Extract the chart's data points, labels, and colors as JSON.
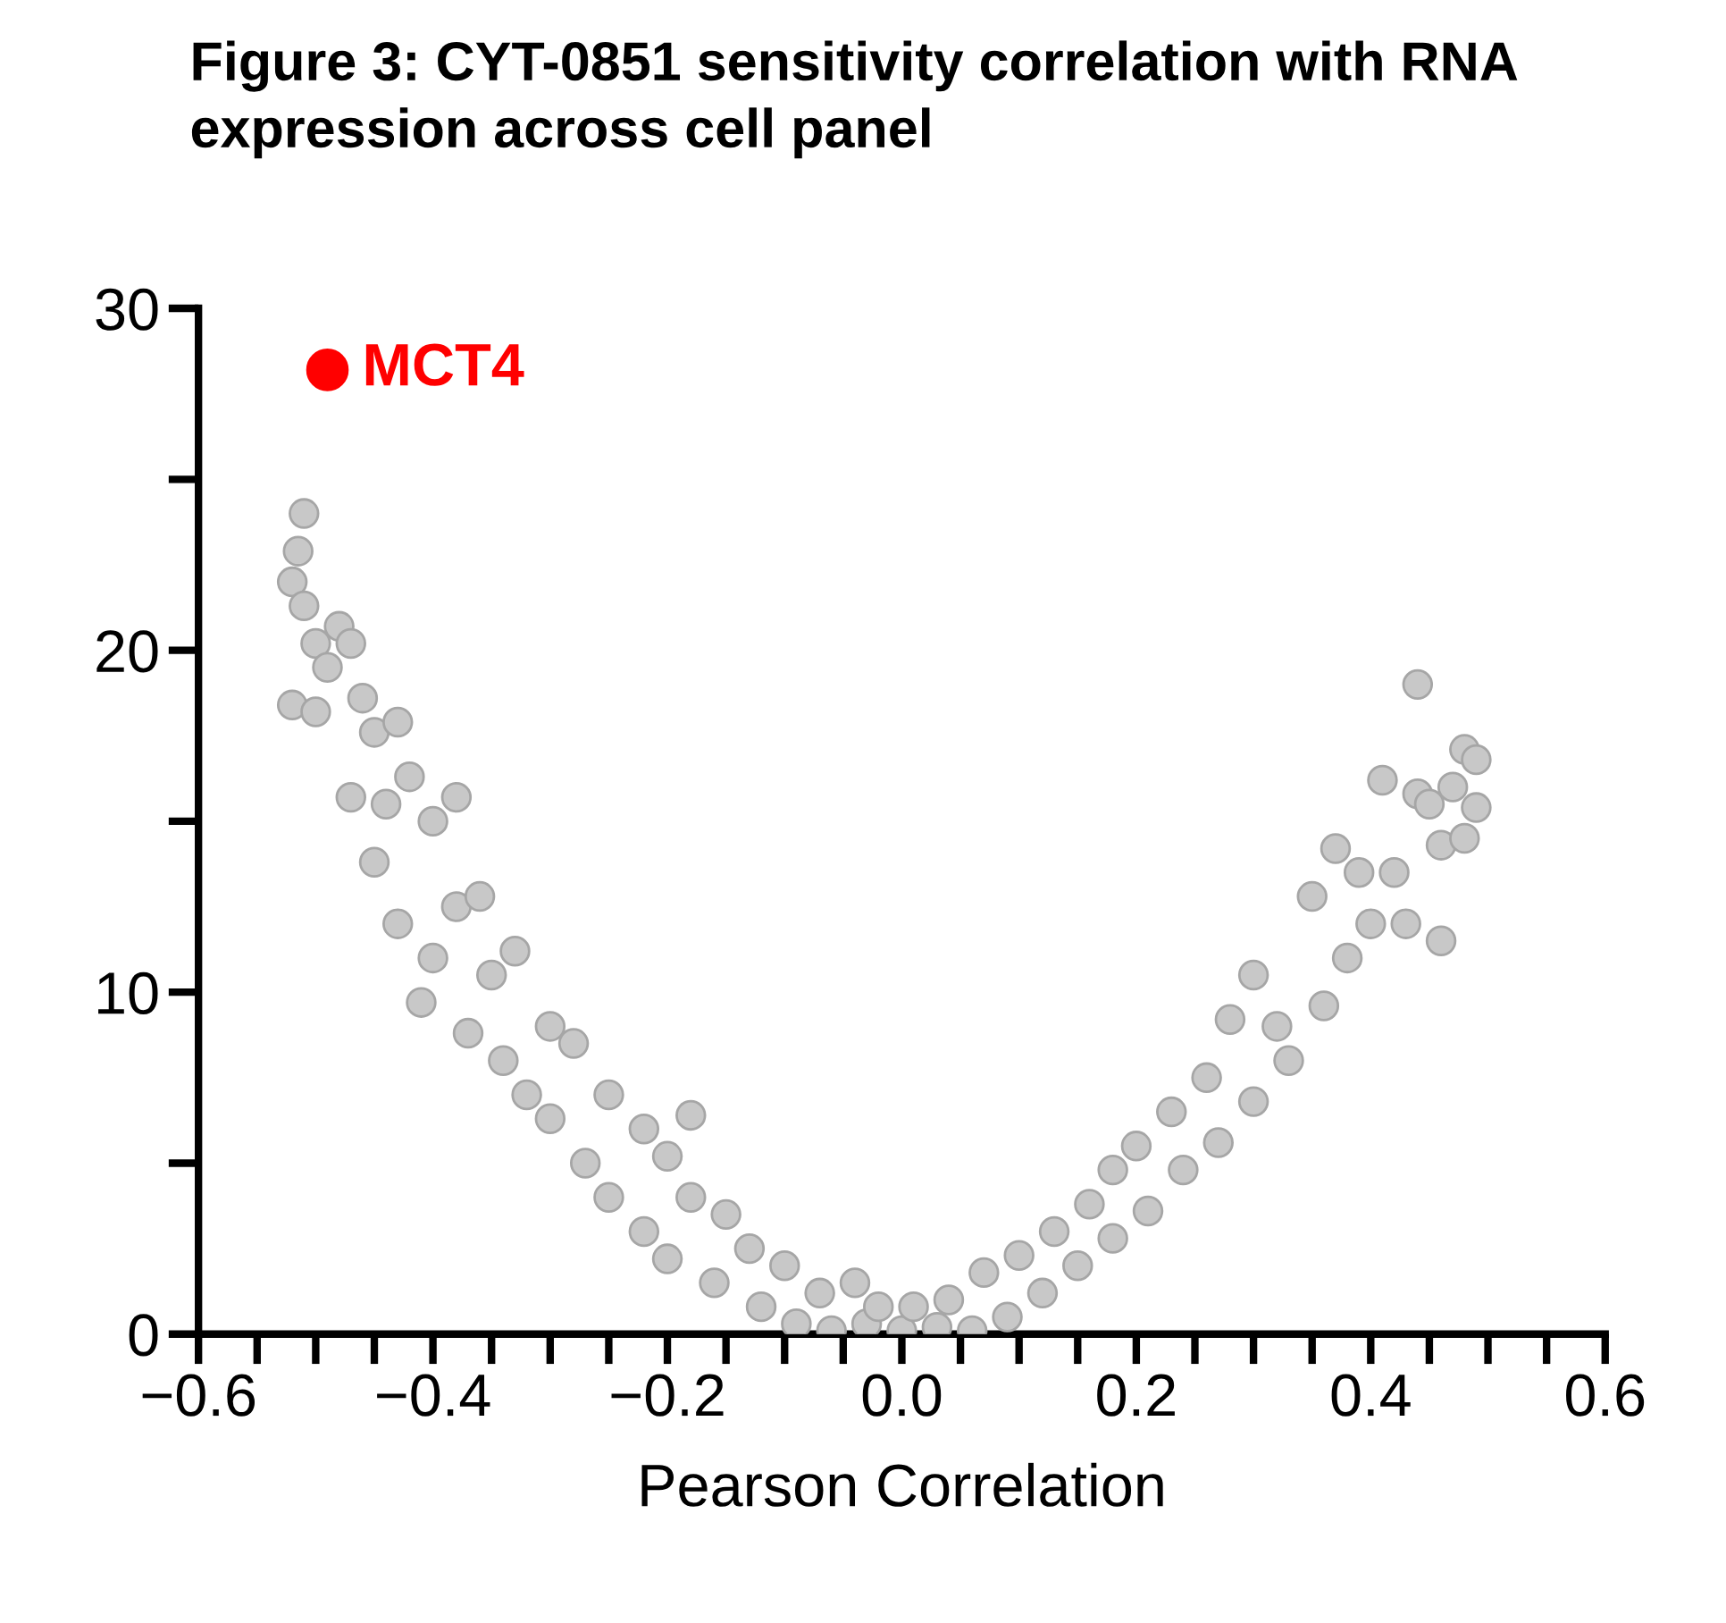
{
  "chart_data": {
    "type": "scatter",
    "title": "Figure 3: CYT-0851 sensitivity correlation with RNA expression across cell panel",
    "xlabel": "Pearson Correlation",
    "marker": "circle",
    "grid": false,
    "legend": false,
    "xlim": [
      -0.6,
      0.6
    ],
    "ylim": [
      0,
      30
    ],
    "xticks": [
      -0.6,
      -0.4,
      -0.2,
      {
        "value": 0.0,
        "label": "0.0"
      },
      0.2,
      0.4,
      0.6
    ],
    "yticks": [
      0,
      10,
      20,
      30
    ],
    "series": [
      {
        "color": "#c8c8c8",
        "x": [
          -0.51,
          -0.515,
          -0.52,
          -0.51,
          -0.5,
          -0.49,
          -0.52,
          -0.5,
          -0.48,
          -0.47,
          -0.46,
          -0.45,
          -0.43,
          -0.47,
          -0.44,
          -0.42,
          -0.45,
          -0.43,
          -0.4,
          -0.38,
          -0.4,
          -0.41,
          -0.38,
          -0.36,
          -0.37,
          -0.35,
          -0.33,
          -0.34,
          -0.32,
          -0.3,
          -0.3,
          -0.28,
          -0.27,
          -0.25,
          -0.25,
          -0.22,
          -0.22,
          -0.2,
          -0.2,
          -0.18,
          -0.18,
          -0.16,
          -0.15,
          -0.13,
          -0.12,
          -0.1,
          -0.09,
          -0.07,
          -0.06,
          -0.04,
          -0.03,
          -0.02,
          0.0,
          0.01,
          0.03,
          0.04,
          0.06,
          0.07,
          0.09,
          0.1,
          0.12,
          0.13,
          0.15,
          0.16,
          0.18,
          0.18,
          0.2,
          0.21,
          0.23,
          0.24,
          0.26,
          0.27,
          0.28,
          0.3,
          0.3,
          0.32,
          0.33,
          0.35,
          0.36,
          0.37,
          0.38,
          0.39,
          0.4,
          0.41,
          0.42,
          0.43,
          0.44,
          0.44,
          0.45,
          0.46,
          0.46,
          0.47,
          0.48,
          0.48,
          0.49,
          0.49
        ],
        "values": [
          24.0,
          22.9,
          22.0,
          21.3,
          20.2,
          19.5,
          18.4,
          18.2,
          20.7,
          20.2,
          18.6,
          17.6,
          17.9,
          15.7,
          15.5,
          16.3,
          13.8,
          12.0,
          15.0,
          15.7,
          11.0,
          9.7,
          12.5,
          12.8,
          8.8,
          10.5,
          11.2,
          8.0,
          7.0,
          9.0,
          6.3,
          8.5,
          5.0,
          7.0,
          4.0,
          6.0,
          3.0,
          5.2,
          2.2,
          6.4,
          4.0,
          1.5,
          3.5,
          2.5,
          0.8,
          2.0,
          0.3,
          1.2,
          0.1,
          1.5,
          0.3,
          0.8,
          0.1,
          0.8,
          0.2,
          1.0,
          0.1,
          1.8,
          0.5,
          2.3,
          1.2,
          3.0,
          2.0,
          3.8,
          4.8,
          2.8,
          5.5,
          3.6,
          6.5,
          4.8,
          7.5,
          5.6,
          9.2,
          10.5,
          6.8,
          9.0,
          8.0,
          12.8,
          9.6,
          14.2,
          11.0,
          13.5,
          12.0,
          16.2,
          13.5,
          12.0,
          19.0,
          15.8,
          15.5,
          11.5,
          14.3,
          16.0,
          17.1,
          14.5,
          16.8,
          15.4
        ]
      },
      {
        "name": "MCT4",
        "color": "#ff0000",
        "x": [
          -0.49
        ],
        "values": [
          28.2
        ]
      }
    ]
  }
}
